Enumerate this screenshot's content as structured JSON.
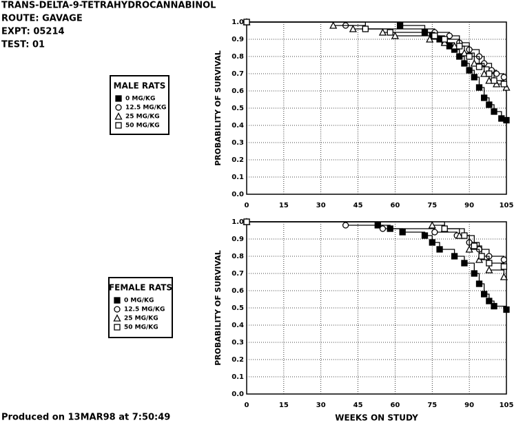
{
  "header": {
    "lines": [
      "TRANS-DELTA-9-TETRAHYDROCANNABINOL",
      "ROUTE: GAVAGE",
      "EXPT: 05214",
      "TEST: 01"
    ]
  },
  "footer": "Produced on 13MAR98 at 7:50:49",
  "chart_data": [
    {
      "type": "step",
      "ylabel": "PROBABILITY OF SURVIVAL",
      "legend_title": "MALE RATS",
      "grid": true,
      "xlim": [
        0,
        105
      ],
      "xticks": [
        0,
        15,
        30,
        45,
        60,
        75,
        90,
        105
      ],
      "ylim": [
        0,
        1
      ],
      "yticks": [
        {
          "value": 0,
          "label": "0.0"
        },
        0.1,
        0.2,
        0.3,
        0.4,
        0.5,
        0.6,
        0.7,
        0.8,
        0.9,
        {
          "value": 1,
          "label": "1.0"
        }
      ],
      "series": [
        {
          "name": "0 MG/KG",
          "color": "#000000",
          "marker": "filled-square",
          "x": [
            0,
            62,
            72,
            75,
            78,
            80,
            82,
            84,
            86,
            88,
            90,
            92,
            94,
            96,
            98,
            100,
            103,
            105
          ],
          "values": [
            1.0,
            0.98,
            0.94,
            0.92,
            0.9,
            0.88,
            0.86,
            0.84,
            0.8,
            0.76,
            0.72,
            0.68,
            0.62,
            0.56,
            0.52,
            0.48,
            0.44,
            0.43
          ]
        },
        {
          "name": "12.5 MG/KG",
          "color": "#000000",
          "marker": "circle",
          "x": [
            0,
            40,
            48,
            76,
            82,
            86,
            90,
            94,
            96,
            99,
            101,
            104
          ],
          "values": [
            1.0,
            0.98,
            0.96,
            0.94,
            0.92,
            0.88,
            0.84,
            0.8,
            0.76,
            0.72,
            0.7,
            0.68
          ]
        },
        {
          "name": "25 MG/KG",
          "color": "#000000",
          "marker": "triangle",
          "x": [
            0,
            35,
            43,
            55,
            60,
            74,
            80,
            84,
            88,
            92,
            96,
            98,
            101,
            105
          ],
          "values": [
            1.0,
            0.98,
            0.96,
            0.94,
            0.92,
            0.9,
            0.88,
            0.86,
            0.82,
            0.76,
            0.7,
            0.66,
            0.64,
            0.62
          ]
        },
        {
          "name": "50 MG/KG",
          "color": "#000000",
          "marker": "square",
          "x": [
            0,
            48,
            58,
            76,
            80,
            86,
            90,
            94,
            98,
            100,
            104
          ],
          "values": [
            1.0,
            0.96,
            0.94,
            0.92,
            0.9,
            0.86,
            0.8,
            0.74,
            0.7,
            0.66,
            0.64
          ]
        }
      ]
    },
    {
      "type": "step",
      "ylabel": "PROBABILITY OF SURVIVAL",
      "xlabel": "WEEKS ON STUDY",
      "legend_title": "FEMALE RATS",
      "grid": true,
      "xlim": [
        0,
        105
      ],
      "xticks": [
        0,
        15,
        30,
        45,
        60,
        75,
        90,
        105
      ],
      "ylim": [
        0,
        1
      ],
      "yticks": [
        {
          "value": 0,
          "label": "0.0"
        },
        0.1,
        0.2,
        0.3,
        0.4,
        0.5,
        0.6,
        0.7,
        0.8,
        0.9,
        {
          "value": 1,
          "label": "1.0"
        }
      ],
      "series": [
        {
          "name": "0 MG/KG",
          "color": "#000000",
          "marker": "filled-square",
          "x": [
            0,
            53,
            58,
            63,
            72,
            75,
            78,
            84,
            88,
            92,
            94,
            96,
            98,
            100,
            105
          ],
          "values": [
            1.0,
            0.98,
            0.96,
            0.94,
            0.92,
            0.88,
            0.84,
            0.8,
            0.76,
            0.7,
            0.64,
            0.58,
            0.54,
            0.51,
            0.49
          ]
        },
        {
          "name": "12.5 MG/KG",
          "color": "#000000",
          "marker": "circle",
          "x": [
            0,
            40,
            55,
            76,
            85,
            90,
            94,
            98,
            104
          ],
          "values": [
            1.0,
            0.98,
            0.96,
            0.94,
            0.92,
            0.88,
            0.84,
            0.8,
            0.78
          ]
        },
        {
          "name": "25 MG/KG",
          "color": "#000000",
          "marker": "triangle",
          "x": [
            0,
            75,
            80,
            86,
            90,
            94,
            98,
            104
          ],
          "values": [
            1.0,
            0.98,
            0.96,
            0.92,
            0.84,
            0.78,
            0.72,
            0.68
          ]
        },
        {
          "name": "50 MG/KG",
          "color": "#000000",
          "marker": "square",
          "x": [
            0,
            80,
            88,
            92,
            95,
            98,
            104
          ],
          "values": [
            1.0,
            0.96,
            0.92,
            0.86,
            0.8,
            0.76,
            0.74
          ]
        }
      ]
    }
  ]
}
